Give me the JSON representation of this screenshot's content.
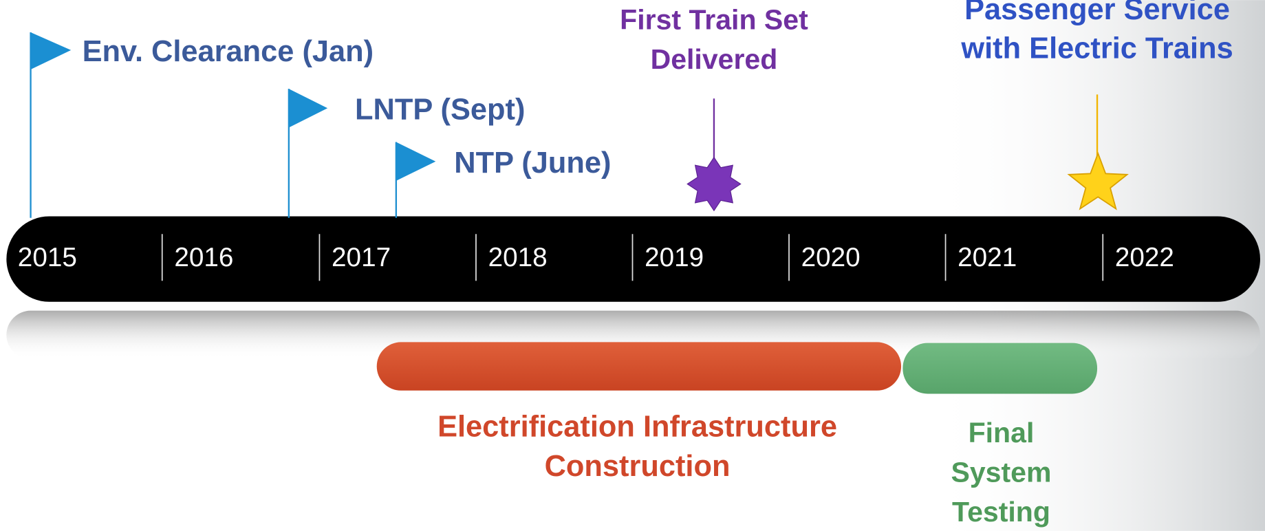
{
  "timeline": {
    "years": [
      "2015",
      "2016",
      "2017",
      "2018",
      "2019",
      "2020",
      "2021",
      "2022"
    ]
  },
  "milestones": [
    {
      "lines": [
        "Env. Clearance (Jan)"
      ]
    },
    {
      "lines": [
        "LNTP (Sept)"
      ]
    },
    {
      "lines": [
        "NTP (June)"
      ]
    },
    {
      "lines": [
        "First Train Set",
        "Delivered"
      ]
    },
    {
      "lines": [
        "Passenger Service",
        "with Electric Trains"
      ]
    }
  ],
  "phases": [
    {
      "lines": [
        "Electrification Infrastructure",
        "Construction"
      ]
    },
    {
      "lines": [
        "Final",
        "System",
        "Testing"
      ]
    }
  ]
}
